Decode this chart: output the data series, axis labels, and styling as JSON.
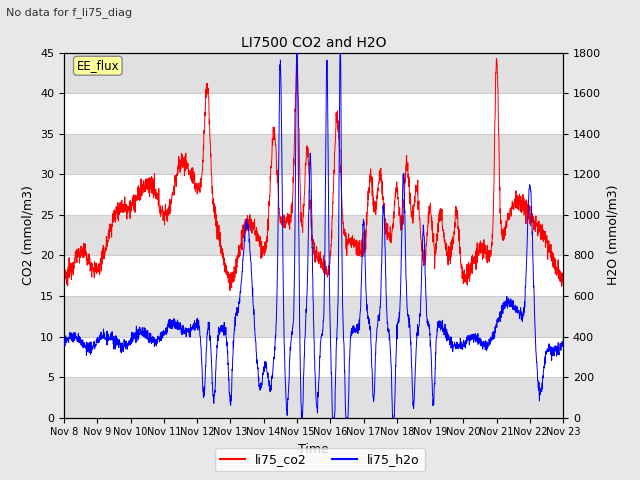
{
  "title": "LI7500 CO2 and H2O",
  "suptitle": "No data for f_li75_diag",
  "xlabel": "Time",
  "ylabel_left": "CO2 (mmol/m3)",
  "ylabel_right": "H2O (mmol/m3)",
  "ylim_left": [
    0,
    45
  ],
  "ylim_right": [
    0,
    1800
  ],
  "yticks_left": [
    0,
    5,
    10,
    15,
    20,
    25,
    30,
    35,
    40,
    45
  ],
  "yticks_right": [
    0,
    200,
    400,
    600,
    800,
    1000,
    1200,
    1400,
    1600,
    1800
  ],
  "x_tick_labels": [
    "Nov 8",
    "Nov 9",
    "Nov 10",
    "Nov 11",
    "Nov 12",
    "Nov 13",
    "Nov 14",
    "Nov 15",
    "Nov 16",
    "Nov 17",
    "Nov 18",
    "Nov 19",
    "Nov 20",
    "Nov 21",
    "Nov 22",
    "Nov 23"
  ],
  "co2_color": "#ff0000",
  "h2o_color": "#0000ff",
  "legend_label_co2": "li75_co2",
  "legend_label_h2o": "li75_h2o",
  "annotation_box_text": "EE_flux",
  "annotation_box_color": "#ffff99",
  "background_color": "#e8e8e8",
  "plot_bg_color": "#ffffff",
  "grid_color": "#cccccc",
  "band_color": "#e0e0e0",
  "figsize": [
    6.4,
    4.8
  ],
  "dpi": 100
}
